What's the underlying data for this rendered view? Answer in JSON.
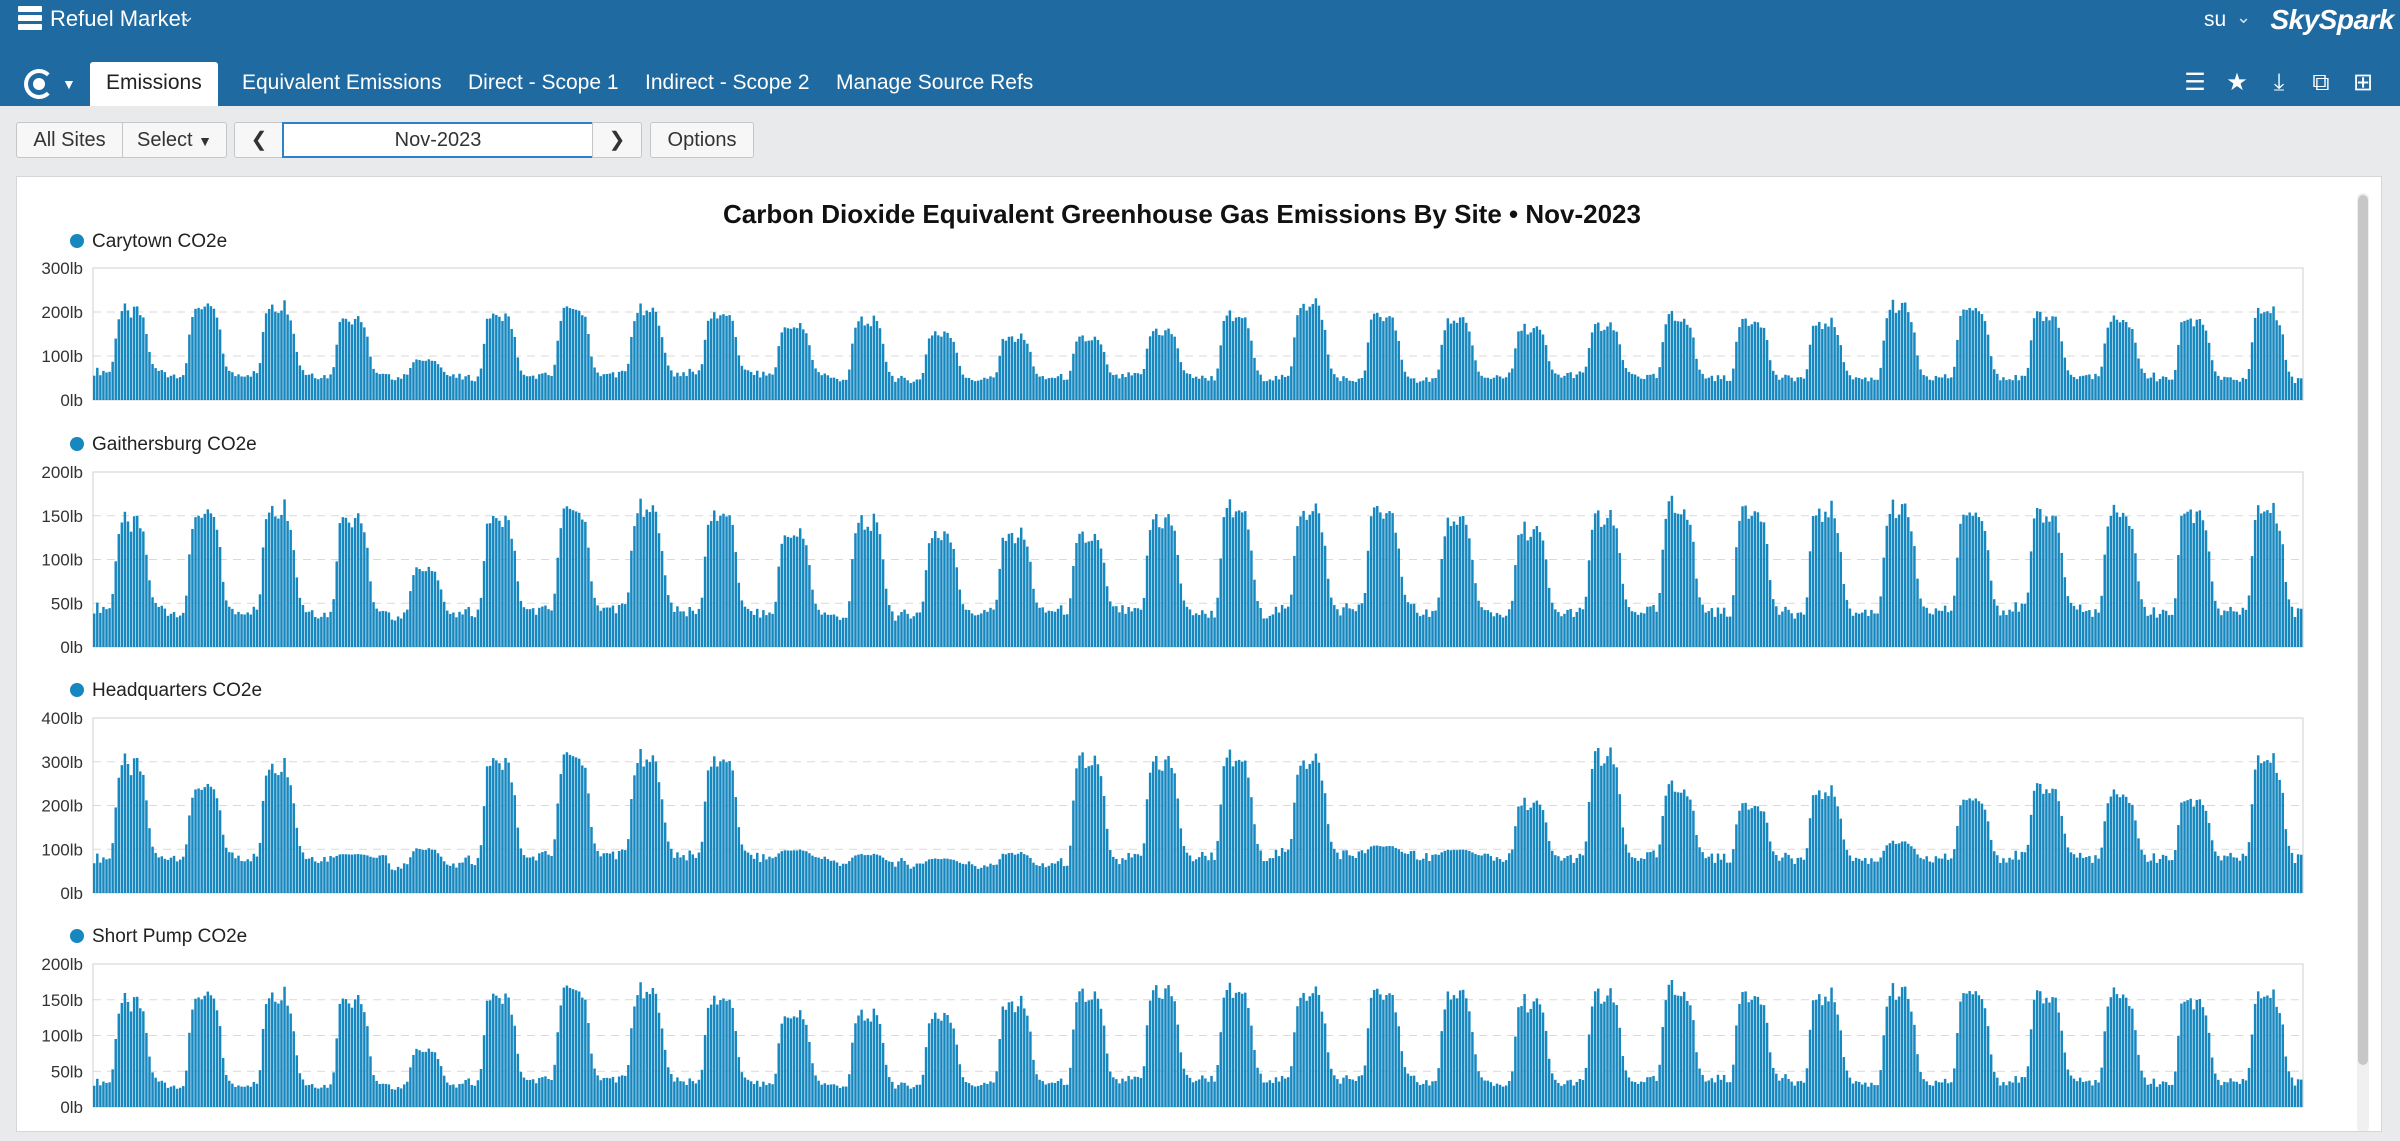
{
  "app": {
    "title": "Refuel Market",
    "user": "su",
    "brand": "SkySpark"
  },
  "tabs": [
    {
      "label": "Emissions",
      "active": true
    },
    {
      "label": "Equivalent Emissions",
      "active": false
    },
    {
      "label": "Direct - Scope 1",
      "active": false
    },
    {
      "label": "Indirect - Scope 2",
      "active": false
    },
    {
      "label": "Manage Source Refs",
      "active": false
    }
  ],
  "toolbar": {
    "all_sites": "All Sites",
    "select": "Select",
    "date": "Nov-2023",
    "options": "Options"
  },
  "tools": [
    "list-icon",
    "star-icon",
    "download-icon",
    "copy-windows-icon",
    "new-view-icon"
  ],
  "colors": {
    "header": "#1f6aa0",
    "bar": "#1687bf",
    "grid": "#d9d9d9"
  },
  "chart_data": {
    "type": "bar",
    "title": "Carbon Dioxide Equivalent Greenhouse Gas Emissions By Site • Nov-2023",
    "period": "Nov-2023",
    "x_days": 30,
    "samples_per_day": 24,
    "charts": [
      {
        "series": "Carytown CO2e",
        "ylim": [
          0,
          300
        ],
        "ticks": [
          "300lb",
          "200lb",
          "100lb",
          "0lb"
        ],
        "tick_values": [
          300,
          200,
          100,
          0
        ],
        "daily_base": [
          65,
          58,
          60,
          55,
          52,
          50,
          55,
          60,
          62,
          58,
          48,
          45,
          48,
          52,
          55,
          50,
          50,
          45,
          48,
          55,
          58,
          52,
          50,
          50,
          48,
          52,
          50,
          55,
          48,
          45
        ],
        "daily_peak": [
          220,
          230,
          235,
          205,
          95,
          210,
          225,
          220,
          210,
          180,
          195,
          165,
          155,
          150,
          170,
          205,
          240,
          210,
          195,
          175,
          180,
          205,
          200,
          190,
          230,
          225,
          210,
          195,
          200,
          220
        ]
      },
      {
        "series": "Gaithersburg CO2e",
        "ylim": [
          0,
          200
        ],
        "ticks": [
          "200lb",
          "150lb",
          "100lb",
          "50lb",
          "0lb"
        ],
        "tick_values": [
          200,
          150,
          100,
          50,
          0
        ],
        "daily_base": [
          45,
          40,
          42,
          38,
          35,
          40,
          42,
          45,
          40,
          38,
          35,
          38,
          40,
          42,
          40,
          38,
          42,
          45,
          40,
          38,
          40,
          42,
          40,
          38,
          40,
          42,
          45,
          40,
          38,
          40
        ],
        "daily_peak": [
          155,
          165,
          175,
          165,
          95,
          160,
          170,
          170,
          165,
          140,
          155,
          140,
          140,
          135,
          160,
          170,
          170,
          170,
          155,
          145,
          160,
          175,
          175,
          170,
          170,
          165,
          165,
          165,
          170,
          170
        ]
      },
      {
        "series": "Headquarters CO2e",
        "ylim": [
          0,
          400
        ],
        "ticks": [
          "400lb",
          "300lb",
          "200lb",
          "100lb",
          "0lb"
        ],
        "tick_values": [
          400,
          300,
          200,
          100,
          0
        ],
        "daily_base": [
          80,
          85,
          82,
          80,
          60,
          75,
          85,
          90,
          85,
          80,
          70,
          65,
          60,
          70,
          80,
          85,
          90,
          88,
          85,
          80,
          80,
          85,
          80,
          78,
          75,
          80,
          85,
          80,
          78,
          80
        ],
        "daily_peak": [
          320,
          260,
          320,
          90,
          105,
          330,
          340,
          330,
          330,
          100,
          90,
          80,
          95,
          330,
          330,
          330,
          330,
          110,
          100,
          220,
          340,
          260,
          220,
          250,
          120,
          230,
          260,
          240,
          230,
          330
        ]
      },
      {
        "series": "Short Pump CO2e",
        "ylim": [
          0,
          200
        ],
        "ticks": [
          "200lb",
          "150lb",
          "100lb",
          "50lb",
          "0lb"
        ],
        "tick_values": [
          200,
          150,
          100,
          50,
          0
        ],
        "daily_base": [
          35,
          30,
          32,
          30,
          28,
          35,
          38,
          40,
          35,
          32,
          30,
          30,
          32,
          35,
          38,
          40,
          38,
          40,
          35,
          32,
          35,
          38,
          40,
          35,
          32,
          35,
          38,
          35,
          32,
          35
        ],
        "daily_peak": [
          160,
          170,
          175,
          170,
          85,
          170,
          180,
          175,
          165,
          140,
          140,
          140,
          160,
          170,
          180,
          175,
          175,
          175,
          170,
          160,
          170,
          180,
          175,
          170,
          175,
          175,
          170,
          170,
          165,
          170
        ]
      }
    ]
  }
}
